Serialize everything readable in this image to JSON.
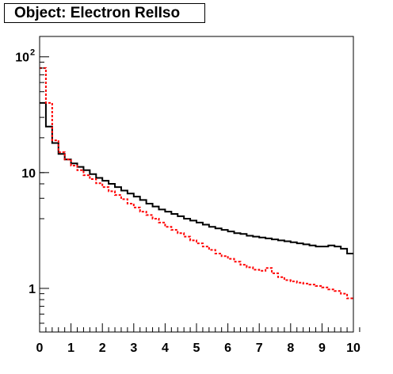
{
  "chart_data": {
    "type": "line",
    "title": "Object: Electron RelIso",
    "xlabel": "",
    "ylabel": "",
    "xlim": [
      0,
      10
    ],
    "ylim": [
      0.42,
      150
    ],
    "yscale": "log",
    "x_ticks": [
      "0",
      "1",
      "2",
      "3",
      "4",
      "5",
      "6",
      "7",
      "8",
      "9",
      "10"
    ],
    "y_ticks": [
      {
        "value": 1,
        "label": "1"
      },
      {
        "value": 10,
        "label": "10"
      },
      {
        "value": 100,
        "label": "10",
        "exponent": "2"
      }
    ],
    "bin_width": 0.2,
    "series": [
      {
        "style": "solid-step",
        "color": "#000000",
        "values": [
          40,
          25,
          18,
          14.5,
          13,
          12,
          11.2,
          10.5,
          9.7,
          9,
          8.5,
          8,
          7.5,
          7,
          6.6,
          6.2,
          5.8,
          5.4,
          5.1,
          4.8,
          4.6,
          4.4,
          4.2,
          4.0,
          3.85,
          3.7,
          3.55,
          3.4,
          3.3,
          3.2,
          3.1,
          3.0,
          2.95,
          2.85,
          2.8,
          2.75,
          2.7,
          2.65,
          2.6,
          2.55,
          2.5,
          2.45,
          2.4,
          2.35,
          2.3,
          2.3,
          2.35,
          2.3,
          2.2,
          2.0
        ]
      },
      {
        "style": "dashed-step",
        "color": "#ff0000",
        "values": [
          80,
          40,
          19,
          15,
          13,
          11.5,
          10.5,
          9.5,
          8.8,
          8.1,
          7.5,
          6.9,
          6.4,
          5.9,
          5.4,
          5.0,
          4.6,
          4.3,
          4.0,
          3.7,
          3.4,
          3.2,
          3.0,
          2.8,
          2.6,
          2.45,
          2.3,
          2.15,
          2.0,
          1.9,
          1.8,
          1.7,
          1.6,
          1.52,
          1.45,
          1.42,
          1.5,
          1.35,
          1.25,
          1.18,
          1.15,
          1.12,
          1.1,
          1.08,
          1.05,
          1.02,
          0.98,
          0.95,
          0.9,
          0.82
        ]
      }
    ]
  }
}
